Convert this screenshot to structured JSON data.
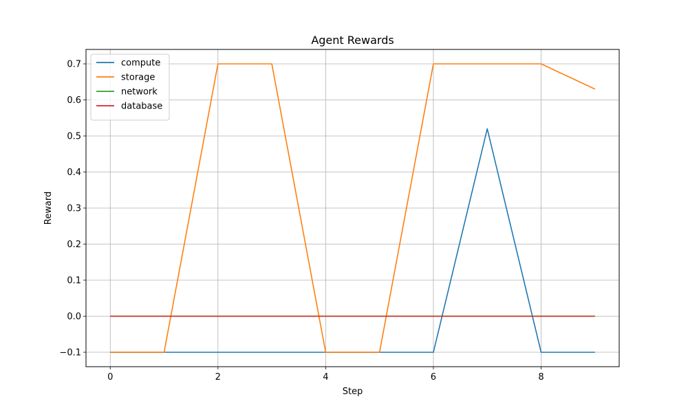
{
  "chart_data": {
    "type": "line",
    "title": "Agent Rewards",
    "xlabel": "Step",
    "ylabel": "Reward",
    "x": [
      0,
      1,
      2,
      3,
      4,
      5,
      6,
      7,
      8,
      9
    ],
    "xlim": [
      -0.45,
      9.45
    ],
    "ylim": [
      -0.14,
      0.74
    ],
    "xticks": [
      0,
      2,
      4,
      6,
      8
    ],
    "yticks": [
      -0.1,
      0.0,
      0.1,
      0.2,
      0.3,
      0.4,
      0.5,
      0.6,
      0.7
    ],
    "ytick_labels": [
      "−0.1",
      "0.0",
      "0.1",
      "0.2",
      "0.3",
      "0.4",
      "0.5",
      "0.6",
      "0.7"
    ],
    "grid": true,
    "legend_position": "top-left",
    "series": [
      {
        "name": "compute",
        "color": "#1f77b4",
        "values": [
          -0.1,
          -0.1,
          -0.1,
          -0.1,
          -0.1,
          -0.1,
          -0.1,
          0.52,
          -0.1,
          -0.1
        ]
      },
      {
        "name": "storage",
        "color": "#ff7f0e",
        "values": [
          -0.1,
          -0.1,
          0.7,
          0.7,
          -0.1,
          -0.1,
          0.7,
          0.7,
          0.7,
          0.63
        ]
      },
      {
        "name": "network",
        "color": "#2ca02c",
        "values": [
          0,
          0,
          0,
          0,
          0,
          0,
          0,
          0,
          0,
          0
        ]
      },
      {
        "name": "database",
        "color": "#d62728",
        "values": [
          0,
          0,
          0,
          0,
          0,
          0,
          0,
          0,
          0,
          0
        ]
      }
    ]
  }
}
